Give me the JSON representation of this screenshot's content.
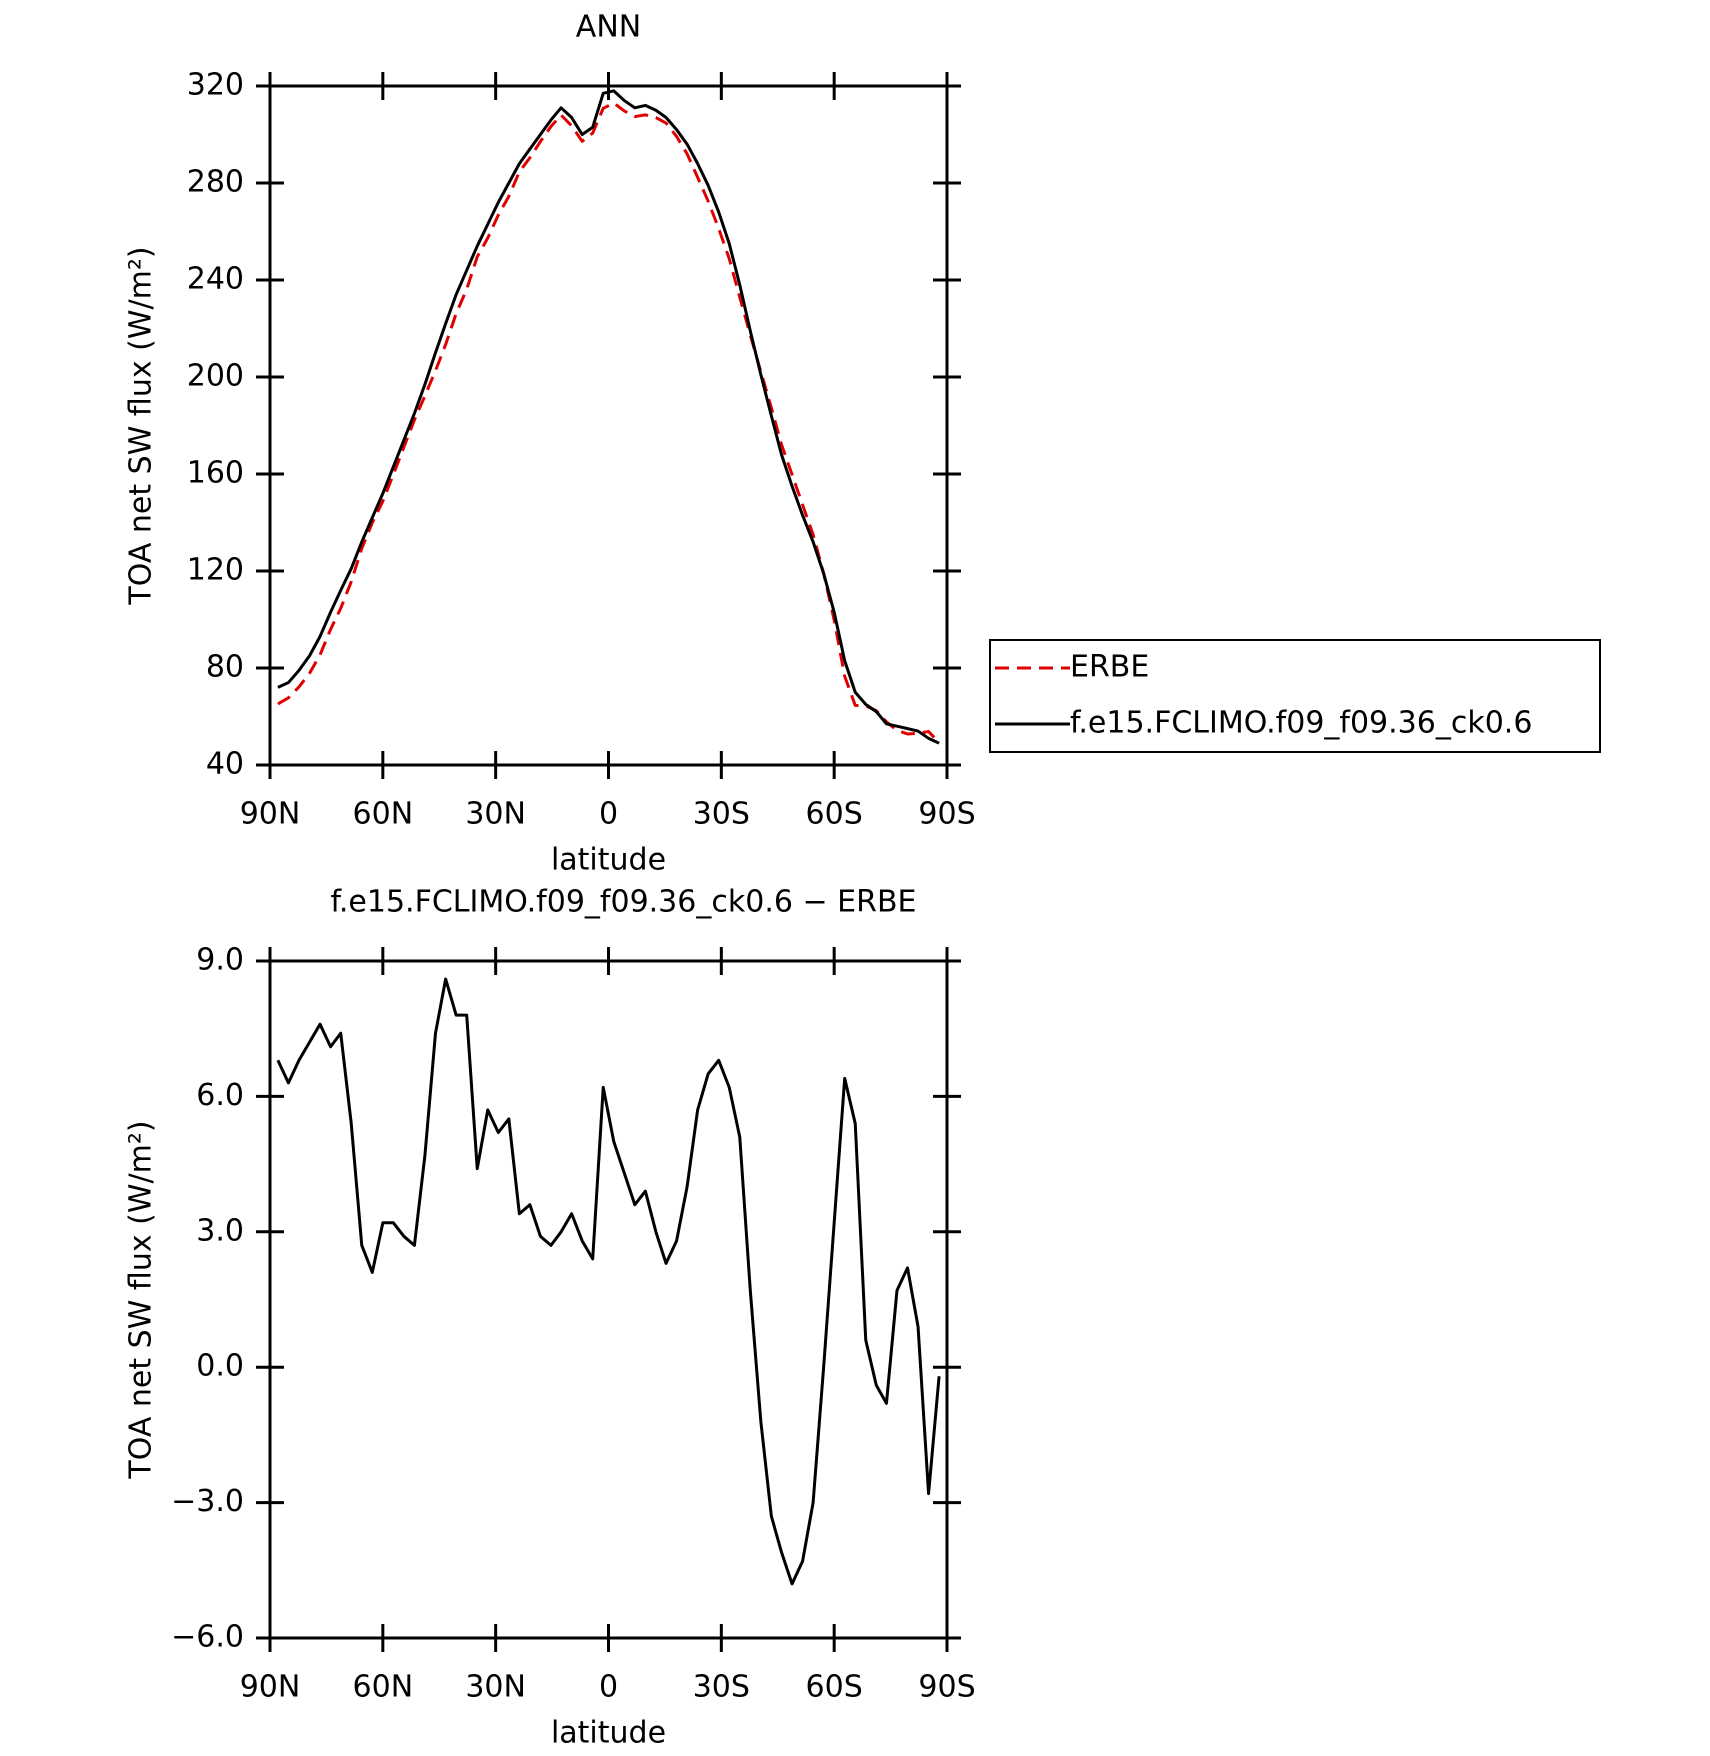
{
  "chart_data": [
    {
      "type": "line",
      "title": "ANN",
      "xlabel": "latitude",
      "ylabel": "TOA net SW flux (W/m²)",
      "x": [
        87.9,
        85.1,
        82.3,
        79.5,
        76.7,
        73.9,
        71.2,
        68.4,
        65.6,
        62.8,
        60.0,
        57.2,
        54.4,
        51.6,
        48.8,
        46.0,
        43.3,
        40.5,
        37.7,
        34.9,
        32.1,
        29.3,
        26.5,
        23.7,
        20.9,
        18.1,
        15.3,
        12.6,
        9.8,
        7.0,
        4.2,
        1.4,
        -1.4,
        -4.2,
        -7.0,
        -9.8,
        -12.6,
        -15.3,
        -18.1,
        -20.9,
        -23.7,
        -26.5,
        -29.3,
        -32.1,
        -34.9,
        -37.7,
        -40.5,
        -43.3,
        -46.0,
        -48.8,
        -51.6,
        -54.4,
        -57.2,
        -60.0,
        -62.8,
        -65.6,
        -68.4,
        -71.2,
        -73.9,
        -76.7,
        -79.5,
        -82.3,
        -85.1,
        -87.9
      ],
      "series": [
        {
          "name": "ERBE",
          "color": "#e00000",
          "dashed": true,
          "values": [
            65.2,
            67.7,
            72.2,
            77.8,
            85.4,
            95.9,
            104.6,
            115.6,
            129.3,
            139.9,
            148.8,
            159.8,
            171.1,
            182.3,
            192.3,
            202.6,
            213.4,
            226.2,
            236.2,
            249.6,
            257.3,
            266.8,
            274.5,
            284.6,
            290.4,
            297.1,
            303.3,
            308.0,
            303.6,
            297.2,
            300.6,
            310.8,
            313.0,
            309.7,
            307.4,
            308.1,
            307.0,
            304.7,
            299.2,
            292.0,
            282.3,
            272.5,
            261.2,
            248.8,
            232.9,
            217.3,
            202.2,
            187.3,
            172.1,
            159.8,
            147.3,
            135.0,
            119.0,
            99.8,
            76.6,
            64.6,
            64.4,
            62.4,
            57.8,
            54.3,
            52.8,
            53.1,
            53.8,
            49.2
          ]
        },
        {
          "name": "f.e15.FCLIMO.f09_f09.36_ck0.6",
          "color": "#000000",
          "dashed": false,
          "values": [
            72,
            74,
            79,
            85,
            93,
            103,
            112,
            121,
            132,
            142,
            152,
            163,
            174,
            185,
            197,
            210,
            222,
            234,
            244,
            254,
            263,
            272,
            280,
            288,
            294,
            300,
            306,
            311,
            307,
            300,
            303,
            317,
            318,
            314,
            311,
            312,
            310,
            307,
            302,
            296,
            288,
            279,
            268,
            255,
            238,
            219,
            201,
            184,
            168,
            155,
            143,
            132,
            119,
            103,
            83,
            70,
            65,
            62,
            57,
            56,
            55,
            54,
            51,
            49
          ]
        }
      ],
      "xlim": [
        90,
        -90
      ],
      "xticks": [
        {
          "value": 90,
          "label": "90N"
        },
        {
          "value": 60,
          "label": "60N"
        },
        {
          "value": 30,
          "label": "30N"
        },
        0,
        {
          "value": -30,
          "label": "30S"
        },
        {
          "value": -60,
          "label": "60S"
        },
        {
          "value": -90,
          "label": "90S"
        }
      ],
      "ylim": [
        40,
        320
      ],
      "yticks": [
        40,
        80,
        120,
        160,
        200,
        240,
        280,
        320
      ],
      "legend": "right"
    },
    {
      "type": "line",
      "title": "f.e15.FCLIMO.f09_f09.36_ck0.6 − ERBE",
      "xlabel": "latitude",
      "ylabel": "TOA net SW flux (W/m²)",
      "x": [
        87.9,
        85.1,
        82.3,
        79.5,
        76.7,
        73.9,
        71.2,
        68.4,
        65.6,
        62.8,
        60.0,
        57.2,
        54.4,
        51.6,
        48.8,
        46.0,
        43.3,
        40.5,
        37.7,
        34.9,
        32.1,
        29.3,
        26.5,
        23.7,
        20.9,
        18.1,
        15.3,
        12.6,
        9.8,
        7.0,
        4.2,
        1.4,
        -1.4,
        -4.2,
        -7.0,
        -9.8,
        -12.6,
        -15.3,
        -18.1,
        -20.9,
        -23.7,
        -26.5,
        -29.3,
        -32.1,
        -34.9,
        -37.7,
        -40.5,
        -43.3,
        -46.0,
        -48.8,
        -51.6,
        -54.4,
        -57.2,
        -60.0,
        -62.8,
        -65.6,
        -68.4,
        -71.2,
        -73.9,
        -76.7,
        -79.5,
        -82.3,
        -85.1,
        -87.9
      ],
      "values": [
        6.8,
        6.3,
        6.8,
        7.2,
        7.6,
        7.1,
        7.4,
        5.4,
        2.7,
        2.1,
        3.2,
        3.2,
        2.9,
        2.7,
        4.7,
        7.4,
        8.6,
        7.8,
        7.8,
        4.4,
        5.7,
        5.2,
        5.5,
        3.4,
        3.6,
        2.9,
        2.7,
        3.0,
        3.4,
        2.8,
        2.4,
        6.2,
        5.0,
        4.3,
        3.6,
        3.9,
        3.0,
        2.3,
        2.8,
        4.0,
        5.7,
        6.5,
        6.8,
        6.2,
        5.1,
        1.7,
        -1.2,
        -3.3,
        -4.1,
        -4.8,
        -4.3,
        -3.0,
        0.0,
        3.2,
        6.4,
        5.4,
        0.6,
        -0.4,
        -0.8,
        1.7,
        2.2,
        0.9,
        -2.8,
        -0.2
      ],
      "color": "#000000",
      "xlim": [
        90,
        -90
      ],
      "xticks": [
        {
          "value": 90,
          "label": "90N"
        },
        {
          "value": 60,
          "label": "60N"
        },
        {
          "value": 30,
          "label": "30N"
        },
        0,
        {
          "value": -30,
          "label": "30S"
        },
        {
          "value": -60,
          "label": "60S"
        },
        {
          "value": -90,
          "label": "90S"
        }
      ],
      "ylim": [
        -6,
        9
      ],
      "yticks": [
        {
          "value": -6,
          "label": "−6.0"
        },
        {
          "value": -3,
          "label": "−3.0"
        },
        {
          "value": 0,
          "label": "0.0"
        },
        {
          "value": 3,
          "label": "3.0"
        },
        {
          "value": 6,
          "label": "6.0"
        },
        {
          "value": 9,
          "label": "9.0"
        }
      ]
    }
  ]
}
